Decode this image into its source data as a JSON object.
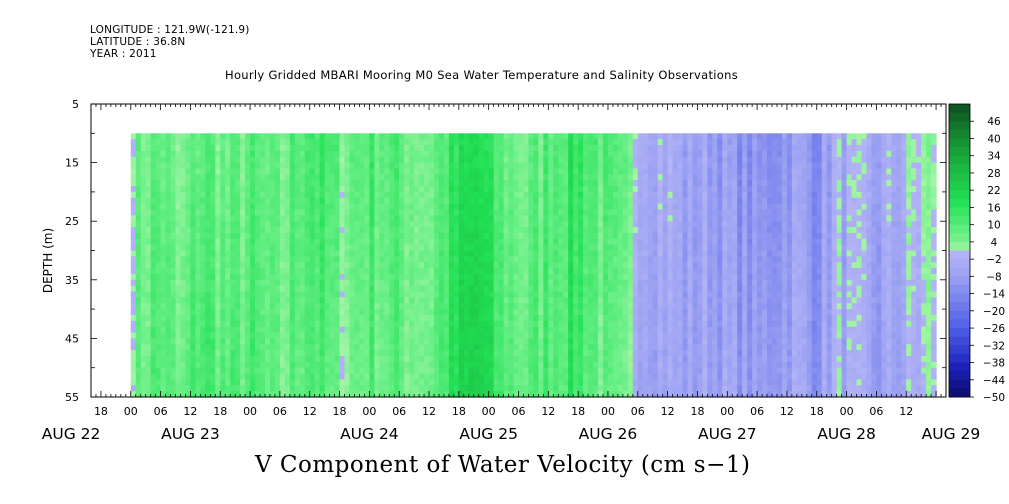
{
  "header": {
    "longitude_line": "LONGITUDE : 121.9W(-121.9)",
    "latitude_line": "LATITUDE : 36.8N",
    "year_line": "YEAR : 2011"
  },
  "chart_data": {
    "type": "heatmap",
    "title": "Hourly Gridded MBARI Mooring M0 Sea Water Temperature and Salinity Observations",
    "xlabel": "V Component of Water Velocity (cm s−1)",
    "ylabel": "DEPTH (m)",
    "ylim": [
      5,
      55
    ],
    "y_inverted": true,
    "y_ticks": [
      "5",
      "15",
      "25",
      "35",
      "45",
      "55"
    ],
    "y_ticks_values": [
      5,
      15,
      25,
      35,
      45,
      55
    ],
    "x_range_hours": [
      -8,
      164
    ],
    "data_depth_range": [
      10,
      55
    ],
    "data_hour_range": [
      0,
      162
    ],
    "x_hour_ticks": [
      {
        "h": -6,
        "label": "18"
      },
      {
        "h": 0,
        "label": "00"
      },
      {
        "h": 6,
        "label": "06"
      },
      {
        "h": 12,
        "label": "12"
      },
      {
        "h": 18,
        "label": "18"
      },
      {
        "h": 24,
        "label": "00"
      },
      {
        "h": 30,
        "label": "06"
      },
      {
        "h": 36,
        "label": "12"
      },
      {
        "h": 42,
        "label": "18"
      },
      {
        "h": 48,
        "label": "00"
      },
      {
        "h": 54,
        "label": "06"
      },
      {
        "h": 60,
        "label": "12"
      },
      {
        "h": 66,
        "label": "18"
      },
      {
        "h": 72,
        "label": "00"
      },
      {
        "h": 78,
        "label": "06"
      },
      {
        "h": 84,
        "label": "12"
      },
      {
        "h": 90,
        "label": "18"
      },
      {
        "h": 96,
        "label": "00"
      },
      {
        "h": 102,
        "label": "06"
      },
      {
        "h": 108,
        "label": "12"
      },
      {
        "h": 114,
        "label": "18"
      },
      {
        "h": 120,
        "label": "00"
      },
      {
        "h": 126,
        "label": "06"
      },
      {
        "h": 132,
        "label": "12"
      },
      {
        "h": 138,
        "label": "18"
      },
      {
        "h": 144,
        "label": "00"
      },
      {
        "h": 150,
        "label": "06"
      },
      {
        "h": 156,
        "label": "12"
      }
    ],
    "x_day_labels": [
      {
        "h": -12,
        "label": "AUG 22"
      },
      {
        "h": 12,
        "label": "AUG 23"
      },
      {
        "h": 48,
        "label": "AUG 24"
      },
      {
        "h": 72,
        "label": "AUG 25"
      },
      {
        "h": 96,
        "label": "AUG 26"
      },
      {
        "h": 120,
        "label": "AUG 27"
      },
      {
        "h": 144,
        "label": "AUG 28"
      },
      {
        "h": 165,
        "label": "AUG 29"
      }
    ],
    "colorbar": {
      "labels": [
        "46",
        "40",
        "34",
        "28",
        "22",
        "16",
        "10",
        "4",
        "−2",
        "−8",
        "−14",
        "−20",
        "−26",
        "−32",
        "−38",
        "−44",
        "−50"
      ],
      "values": [
        46,
        40,
        34,
        28,
        22,
        16,
        10,
        4,
        -2,
        -8,
        -14,
        -20,
        -26,
        -32,
        -38,
        -44,
        -50
      ],
      "range": [
        -50,
        52
      ],
      "colors": {
        "pos_strong": "#0f4f23",
        "pos_mid": "#19a83a",
        "pos_bright": "#22e055",
        "pos_light": "#a6f4a6",
        "neg_light": "#b4b4f6",
        "neg_mid": "#4f5fe8",
        "neg_strong": "#1a1fb8",
        "neg_dark": "#0d0d6a"
      }
    },
    "depth_mean_profile": [
      {
        "hour": 0,
        "v": 4
      },
      {
        "hour": 6,
        "v": 10
      },
      {
        "hour": 10,
        "v": 2
      },
      {
        "hour": 14,
        "v": 12
      },
      {
        "hour": 20,
        "v": 6
      },
      {
        "hour": 24,
        "v": 9
      },
      {
        "hour": 30,
        "v": 4
      },
      {
        "hour": 36,
        "v": 14
      },
      {
        "hour": 42,
        "v": 5
      },
      {
        "hour": 48,
        "v": 10
      },
      {
        "hour": 54,
        "v": 8
      },
      {
        "hour": 60,
        "v": 6
      },
      {
        "hour": 66,
        "v": 17
      },
      {
        "hour": 70,
        "v": 21
      },
      {
        "hour": 74,
        "v": 10
      },
      {
        "hour": 80,
        "v": 6
      },
      {
        "hour": 84,
        "v": 11
      },
      {
        "hour": 90,
        "v": 15
      },
      {
        "hour": 96,
        "v": 6
      },
      {
        "hour": 100,
        "v": 2
      },
      {
        "hour": 104,
        "v": -2
      },
      {
        "hour": 108,
        "v": -4
      },
      {
        "hour": 112,
        "v": -8
      },
      {
        "hour": 116,
        "v": -6
      },
      {
        "hour": 120,
        "v": -8
      },
      {
        "hour": 126,
        "v": -12
      },
      {
        "hour": 130,
        "v": -9
      },
      {
        "hour": 134,
        "v": -6
      },
      {
        "hour": 138,
        "v": -11
      },
      {
        "hour": 142,
        "v": -3
      },
      {
        "hour": 146,
        "v": -5
      },
      {
        "hour": 150,
        "v": -8
      },
      {
        "hour": 156,
        "v": -3
      },
      {
        "hour": 162,
        "v": 2
      }
    ]
  }
}
